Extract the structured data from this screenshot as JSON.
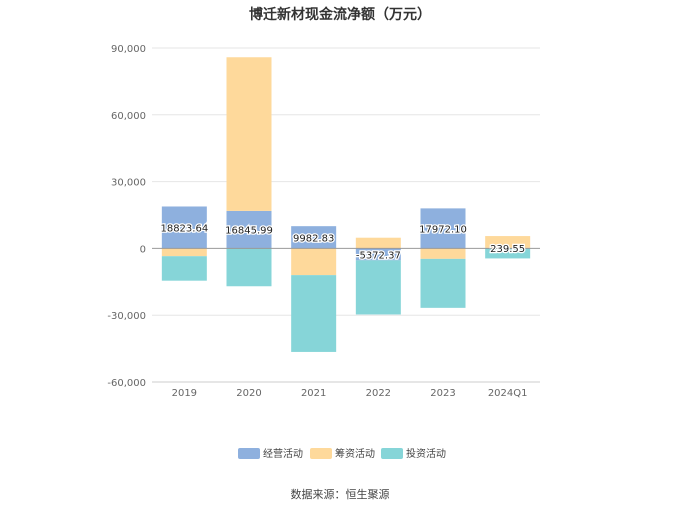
{
  "chart_data": {
    "type": "bar",
    "stacked": true,
    "title": "博迁新材现金流净额（万元）",
    "categories": [
      "2019",
      "2020",
      "2021",
      "2022",
      "2023",
      "2024Q1"
    ],
    "series": [
      {
        "name": "经营活动",
        "color": "#8eb0de",
        "values": [
          18823.64,
          16845.99,
          9982.83,
          -5372.37,
          17972.1,
          239.55
        ],
        "labels": [
          "18823.64",
          "16845.99",
          "9982.83",
          "-5372.37",
          "17972.10",
          "239.55"
        ]
      },
      {
        "name": "筹资活动",
        "color": "#fed99b",
        "values": [
          -3500,
          69000,
          -12000,
          4800,
          -4700,
          5300
        ]
      },
      {
        "name": "投资活动",
        "color": "#86d5d8",
        "values": [
          -11000,
          -17000,
          -34500,
          -24300,
          -22000,
          -4500
        ]
      }
    ],
    "ylim": [
      -60000,
      90000
    ],
    "yticks": [
      90000,
      60000,
      30000,
      0,
      -30000,
      -60000
    ],
    "ytick_labels": [
      "90,000",
      "60,000",
      "30,000",
      "0",
      "-30,000",
      "-60,000"
    ],
    "grid": true,
    "legend_position": "bottom"
  },
  "source": "数据来源：恒生聚源"
}
